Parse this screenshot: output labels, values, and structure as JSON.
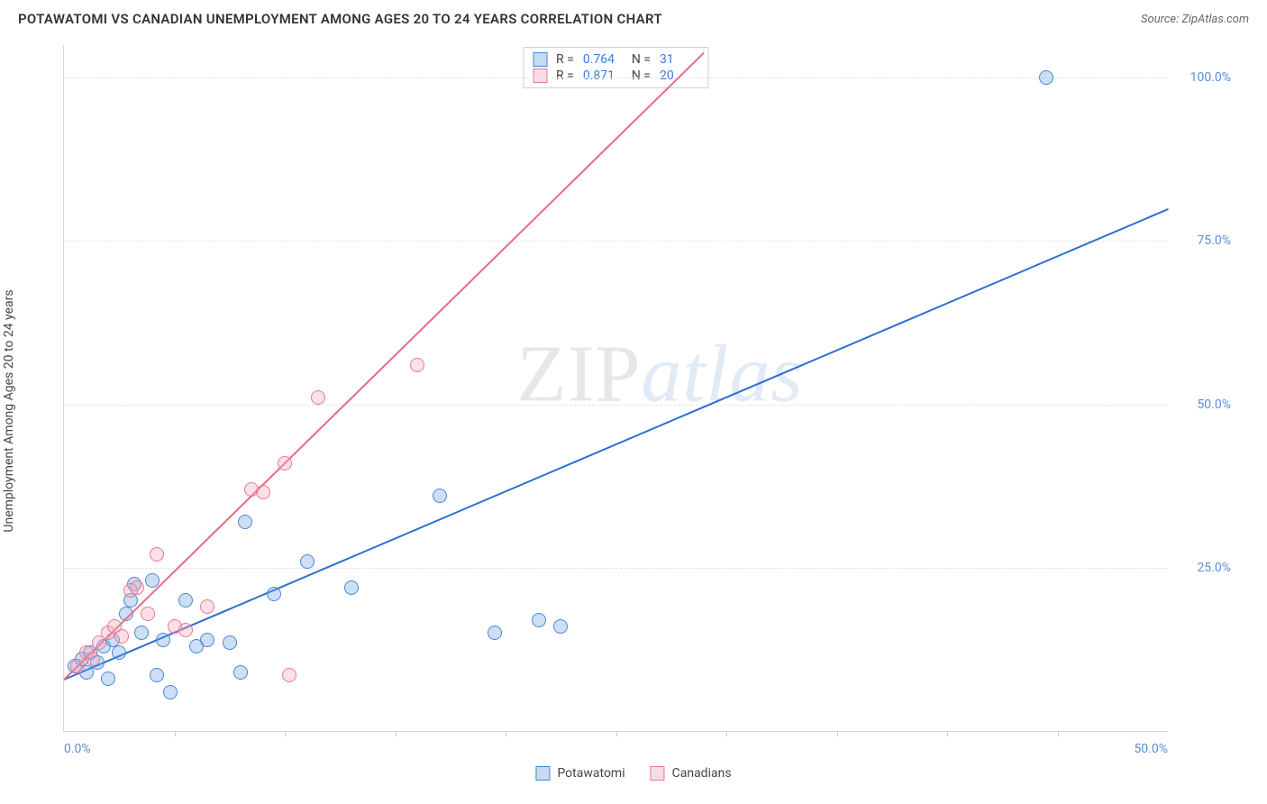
{
  "header": {
    "title": "POTAWATOMI VS CANADIAN UNEMPLOYMENT AMONG AGES 20 TO 24 YEARS CORRELATION CHART",
    "source_prefix": "Source: ",
    "source_name": "ZipAtlas.com"
  },
  "chart": {
    "type": "scatter",
    "ylabel": "Unemployment Among Ages 20 to 24 years",
    "background_color": "#ffffff",
    "grid_color": "#e5e5e5",
    "border_color": "#d8d8d8",
    "xlim": [
      0,
      50
    ],
    "ylim": [
      0,
      105
    ],
    "xtick_step": 5,
    "ytick_step": 25,
    "xtick_labels": [
      {
        "val": 0,
        "text": "0.0%",
        "align": "left"
      },
      {
        "val": 50,
        "text": "50.0%",
        "align": "right"
      }
    ],
    "ytick_labels": [
      {
        "val": 25,
        "text": "25.0%"
      },
      {
        "val": 50,
        "text": "50.0%"
      },
      {
        "val": 75,
        "text": "75.0%"
      },
      {
        "val": 100,
        "text": "100.0%"
      }
    ],
    "tick_label_color": "#5a8fd6",
    "marker_radius": 8,
    "marker_border_width": 1.5,
    "marker_fill_opacity": 0.35,
    "series": [
      {
        "name": "Potawatomi",
        "color": "#6fa3e0",
        "border_color": "#4a87d6",
        "R": "0.764",
        "N": "31",
        "trend": {
          "x1": 0,
          "y1": 8,
          "x2": 50,
          "y2": 80,
          "line_color": "#2f6fd1",
          "line_width": 2
        },
        "points": [
          [
            0.5,
            10
          ],
          [
            0.8,
            11
          ],
          [
            1.0,
            9
          ],
          [
            1.2,
            12
          ],
          [
            1.5,
            10.5
          ],
          [
            1.8,
            13
          ],
          [
            2.0,
            8
          ],
          [
            2.2,
            14
          ],
          [
            2.5,
            12
          ],
          [
            2.8,
            18
          ],
          [
            3.0,
            20
          ],
          [
            3.2,
            22.5
          ],
          [
            3.5,
            15
          ],
          [
            4.0,
            23
          ],
          [
            4.2,
            8.5
          ],
          [
            4.5,
            14
          ],
          [
            4.8,
            6
          ],
          [
            5.5,
            20
          ],
          [
            6.0,
            13
          ],
          [
            6.5,
            14
          ],
          [
            7.5,
            13.5
          ],
          [
            8.0,
            9
          ],
          [
            8.2,
            32
          ],
          [
            9.5,
            21
          ],
          [
            11.0,
            26
          ],
          [
            13.0,
            22
          ],
          [
            17.0,
            36
          ],
          [
            19.5,
            15
          ],
          [
            21.5,
            17
          ],
          [
            22.5,
            16
          ],
          [
            44.5,
            100
          ]
        ]
      },
      {
        "name": "Canadians",
        "color": "#f4a6b8",
        "border_color": "#e77a95",
        "R": "0.871",
        "N": "20",
        "trend": {
          "x1": 0,
          "y1": 8,
          "x2": 29,
          "y2": 104,
          "line_color": "#e86a88",
          "line_width": 2
        },
        "points": [
          [
            0.6,
            10
          ],
          [
            1.0,
            12
          ],
          [
            1.3,
            11
          ],
          [
            1.6,
            13.5
          ],
          [
            2.0,
            15
          ],
          [
            2.3,
            16
          ],
          [
            2.6,
            14.5
          ],
          [
            3.0,
            21.5
          ],
          [
            3.3,
            22
          ],
          [
            3.8,
            18
          ],
          [
            4.2,
            27
          ],
          [
            5.0,
            16
          ],
          [
            5.5,
            15.5
          ],
          [
            6.5,
            19
          ],
          [
            8.5,
            37
          ],
          [
            9.0,
            36.5
          ],
          [
            10.0,
            41
          ],
          [
            10.2,
            8.5
          ],
          [
            11.5,
            51
          ],
          [
            16.0,
            56
          ]
        ]
      }
    ],
    "stats_box": {
      "r_label": "R =",
      "n_label": "N =",
      "value_color": "#3b7dd8"
    },
    "legend": {
      "items": [
        {
          "label": "Potawatomi",
          "series_index": 0
        },
        {
          "label": "Canadians",
          "series_index": 1
        }
      ]
    },
    "watermark": {
      "zip": "ZIP",
      "atlas": "atlas"
    }
  }
}
